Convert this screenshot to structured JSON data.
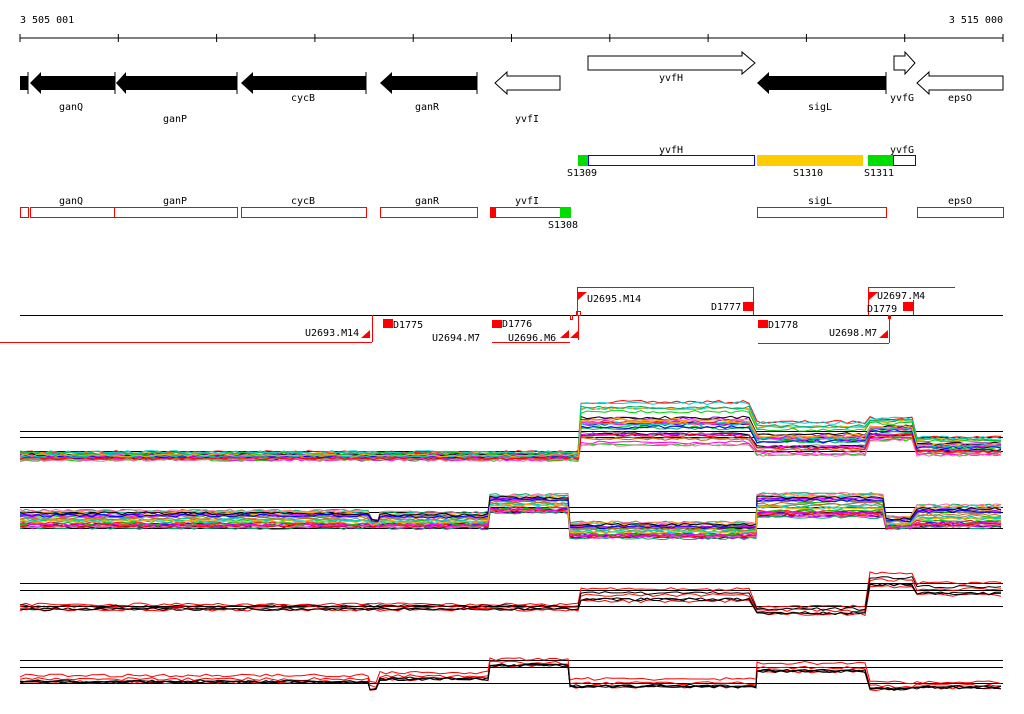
{
  "ruler": {
    "start_label": "3 505 001",
    "end_label": "3 515 000"
  },
  "genes": [
    {
      "name": "ganQ",
      "strand": "-",
      "style": "filled"
    },
    {
      "name": "ganP",
      "strand": "-",
      "style": "filled"
    },
    {
      "name": "cycB",
      "strand": "-",
      "style": "filled"
    },
    {
      "name": "ganR",
      "strand": "-",
      "style": "filled"
    },
    {
      "name": "yvfI",
      "strand": "-",
      "style": "outline"
    },
    {
      "name": "yvfH",
      "strand": "+",
      "style": "outline"
    },
    {
      "name": "sigL",
      "strand": "-",
      "style": "filled"
    },
    {
      "name": "yvfG",
      "strand": "+",
      "style": "outline"
    },
    {
      "name": "epsO",
      "strand": "-",
      "style": "outline"
    }
  ],
  "plus_track": {
    "yvfH": "yvfH",
    "yvfG": "yvfG",
    "S1309": "S1309",
    "S1310": "S1310",
    "S1311": "S1311"
  },
  "minus_track": {
    "ganQ": "ganQ",
    "ganP": "ganP",
    "cycB": "cycB",
    "ganR": "ganR",
    "yvfI": "yvfI",
    "sigL": "sigL",
    "epsO": "epsO",
    "S1308": "S1308"
  },
  "transcription_units": {
    "U2693": "U2693.M14",
    "U2695": "U2695.M14",
    "U2696": "U2696.M6",
    "U2694": "U2694.M7",
    "U2697": "U2697.M4",
    "U2698": "U2698.M7",
    "D1775": "D1775",
    "D1776": "D1776",
    "D1777": "D1777",
    "D1778": "D1778",
    "D1779": "D1779"
  },
  "colors": {
    "accent_red": "#ff0000",
    "green": "#00dd00",
    "yellow": "#ffcc00",
    "blue": "#0000ff"
  }
}
